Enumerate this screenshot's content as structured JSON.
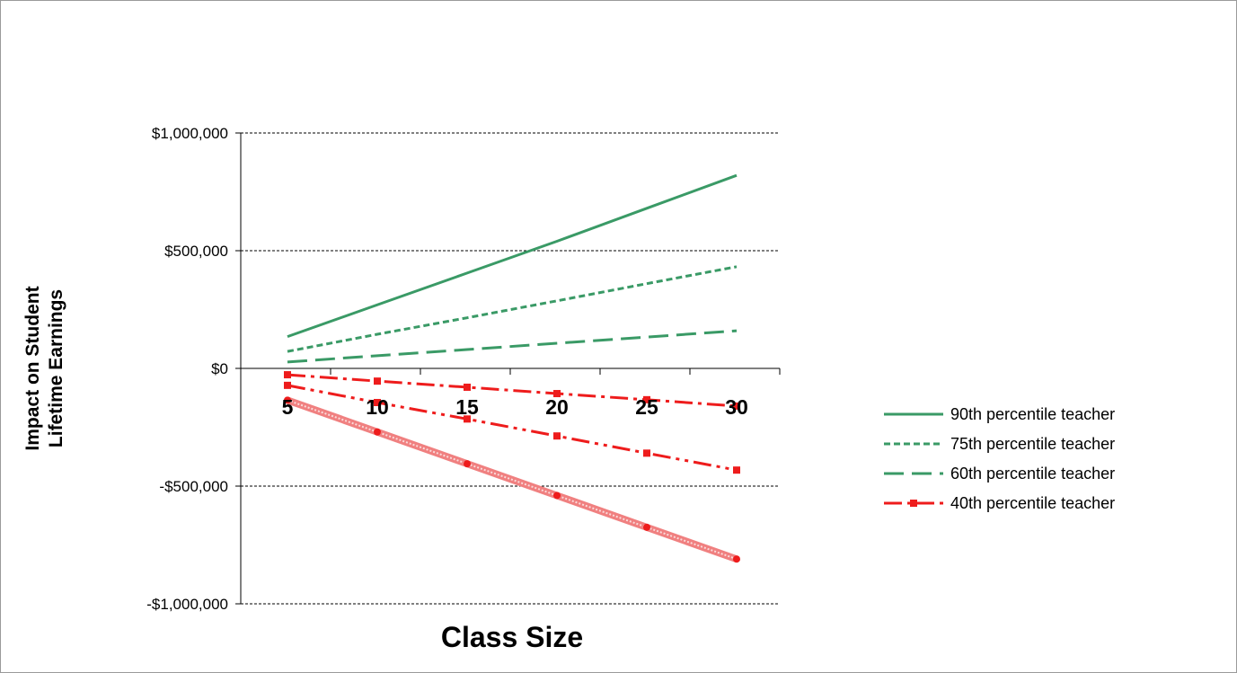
{
  "chart_data": {
    "type": "line",
    "xlabel": "Class Size",
    "ylabel_lines": [
      "Impact on Student",
      "Lifetime Earnings"
    ],
    "x": [
      5,
      10,
      15,
      20,
      25,
      30
    ],
    "x_tick_labels": [
      "5",
      "10",
      "15",
      "20",
      "25",
      "30"
    ],
    "ylim": [
      -1000000,
      1000000
    ],
    "y_ticks": [
      -1000000,
      -500000,
      0,
      500000,
      1000000
    ],
    "y_tick_labels": [
      "-$1,000,000",
      "-$500,000",
      "$0",
      "$500,000",
      "$1,000,000"
    ],
    "grid": true,
    "legend_position": "right",
    "series": [
      {
        "name": "90th percentile teacher",
        "color": "#3a9a66",
        "style": "solid",
        "values": [
          135000,
          270000,
          405000,
          540000,
          680000,
          820000
        ]
      },
      {
        "name": "75th percentile teacher",
        "color": "#3a9a66",
        "style": "dotted",
        "values": [
          72000,
          145000,
          215000,
          287000,
          360000,
          432000
        ]
      },
      {
        "name": "60th percentile teacher",
        "color": "#3a9a66",
        "style": "dashed",
        "values": [
          27000,
          54000,
          80000,
          107000,
          133000,
          160000
        ]
      },
      {
        "name": "40th percentile teacher",
        "color": "#ee1c1c",
        "style": "dash-dot",
        "values": [
          -27000,
          -54000,
          -80000,
          -107000,
          -133000,
          -160000
        ]
      },
      {
        "name": "",
        "color": "#ee1c1c",
        "style": "dash-dot-dot",
        "values": [
          -72000,
          -145000,
          -215000,
          -287000,
          -360000,
          -432000
        ]
      },
      {
        "name": "",
        "color": "#f08080",
        "style": "thick",
        "values": [
          -135000,
          -270000,
          -405000,
          -540000,
          -675000,
          -810000
        ]
      }
    ]
  }
}
